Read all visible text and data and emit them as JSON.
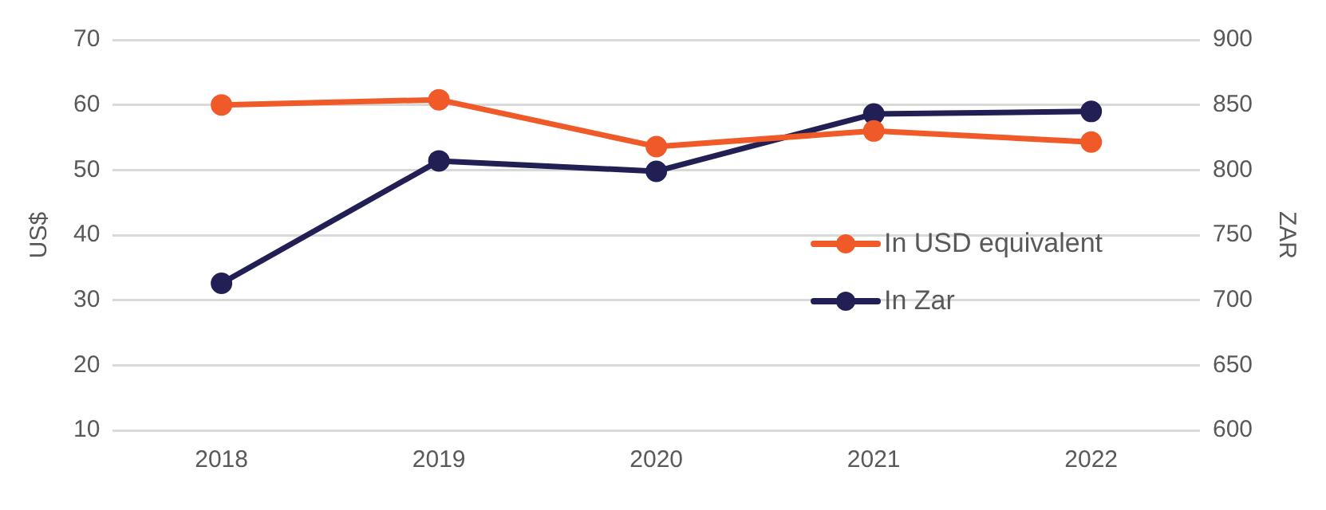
{
  "chart_data": {
    "type": "line",
    "categories": [
      "2018",
      "2019",
      "2020",
      "2021",
      "2022"
    ],
    "series": [
      {
        "name": "In USD equivalent",
        "color": "#f05a28",
        "values": [
          60,
          60.8,
          53.6,
          56,
          54.3
        ]
      },
      {
        "name": "In Zar",
        "color": "#221f55",
        "axis": "y2",
        "values": [
          713,
          807,
          799,
          843,
          845
        ]
      }
    ],
    "ylabel": "US$",
    "y2label": "ZAR",
    "ylim": [
      10,
      70
    ],
    "yticks": [
      10,
      20,
      30,
      40,
      50,
      60,
      70
    ],
    "y2lim": [
      600,
      900
    ],
    "y2ticks": [
      600,
      650,
      700,
      750,
      800,
      850,
      900
    ],
    "grid": "y",
    "legend": "right",
    "marker": "circle",
    "line_style": "solid"
  }
}
